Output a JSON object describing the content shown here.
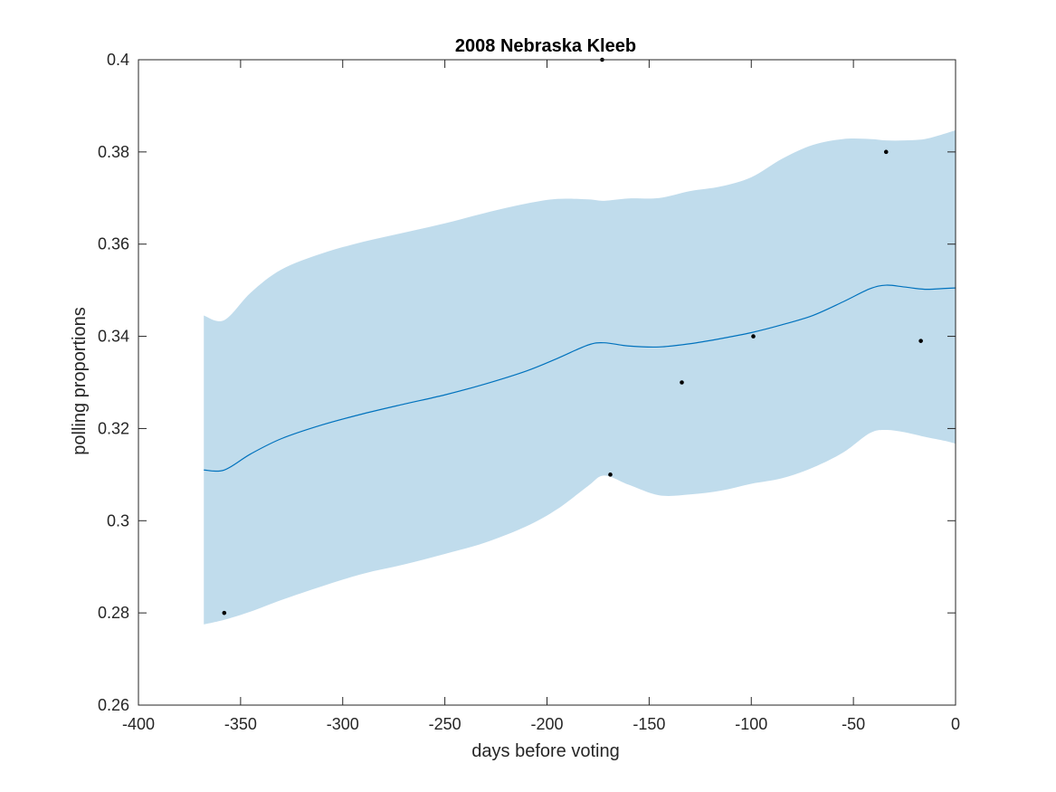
{
  "chart_data": {
    "type": "line",
    "title": "2008 Nebraska Kleeb",
    "xlabel": "days before voting",
    "ylabel": "polling proportions",
    "xlim": [
      -400,
      0
    ],
    "ylim": [
      0.26,
      0.4
    ],
    "xticks": [
      -400,
      -350,
      -300,
      -250,
      -200,
      -150,
      -100,
      -50,
      0
    ],
    "yticks": [
      0.26,
      0.28,
      0.3,
      0.32,
      0.34,
      0.36,
      0.38,
      0.4
    ],
    "xtick_labels": [
      "-400",
      "-350",
      "-300",
      "-250",
      "-200",
      "-150",
      "-100",
      "-50",
      "0"
    ],
    "ytick_labels": [
      "0.26",
      "0.28",
      "0.3",
      "0.32",
      "0.34",
      "0.36",
      "0.38",
      "0.4"
    ],
    "grid": false,
    "colors": {
      "band": "#c0dcec",
      "line": "#0072bd",
      "points": "#000000",
      "axis": "#262626"
    },
    "series": [
      {
        "name": "mean",
        "x": [
          -368,
          -358,
          -345,
          -330,
          -310,
          -290,
          -270,
          -250,
          -230,
          -210,
          -195,
          -180,
          -172,
          -160,
          -145,
          -130,
          -115,
          -100,
          -85,
          -70,
          -55,
          -42,
          -34,
          -25,
          -15,
          -5,
          0
        ],
        "y": [
          0.311,
          0.311,
          0.3145,
          0.3178,
          0.3208,
          0.3232,
          0.3253,
          0.3273,
          0.3297,
          0.3325,
          0.3352,
          0.3381,
          0.3386,
          0.3379,
          0.3377,
          0.3384,
          0.3395,
          0.3408,
          0.3425,
          0.3445,
          0.3475,
          0.3503,
          0.3511,
          0.3507,
          0.3502,
          0.3504,
          0.3505
        ]
      },
      {
        "name": "upper",
        "x": [
          -368,
          -358,
          -345,
          -330,
          -310,
          -290,
          -270,
          -250,
          -230,
          -210,
          -195,
          -180,
          -172,
          -160,
          -145,
          -130,
          -115,
          -100,
          -85,
          -70,
          -55,
          -42,
          -34,
          -25,
          -15,
          -5,
          0
        ],
        "y": [
          0.3445,
          0.3435,
          0.3495,
          0.3545,
          0.358,
          0.3605,
          0.3625,
          0.3645,
          0.3668,
          0.3688,
          0.3698,
          0.3697,
          0.3694,
          0.3699,
          0.37,
          0.3715,
          0.3725,
          0.3745,
          0.3785,
          0.3815,
          0.3828,
          0.3828,
          0.3825,
          0.3825,
          0.3828,
          0.384,
          0.3847
        ]
      },
      {
        "name": "lower",
        "x": [
          -368,
          -358,
          -345,
          -330,
          -310,
          -290,
          -270,
          -250,
          -230,
          -210,
          -195,
          -180,
          -172,
          -160,
          -145,
          -130,
          -115,
          -100,
          -85,
          -70,
          -55,
          -42,
          -34,
          -25,
          -15,
          -5,
          0
        ],
        "y": [
          0.2775,
          0.2785,
          0.2803,
          0.2828,
          0.2858,
          0.2885,
          0.2905,
          0.2928,
          0.2953,
          0.2988,
          0.3025,
          0.3075,
          0.3098,
          0.3078,
          0.3055,
          0.3057,
          0.3065,
          0.308,
          0.3092,
          0.3115,
          0.3148,
          0.319,
          0.3197,
          0.3192,
          0.3182,
          0.3173,
          0.3167
        ]
      },
      {
        "name": "polls",
        "x": [
          -358,
          -173,
          -169,
          -134,
          -99,
          -34,
          -17
        ],
        "y": [
          0.28,
          0.4,
          0.31,
          0.33,
          0.34,
          0.38,
          0.339
        ]
      }
    ]
  }
}
